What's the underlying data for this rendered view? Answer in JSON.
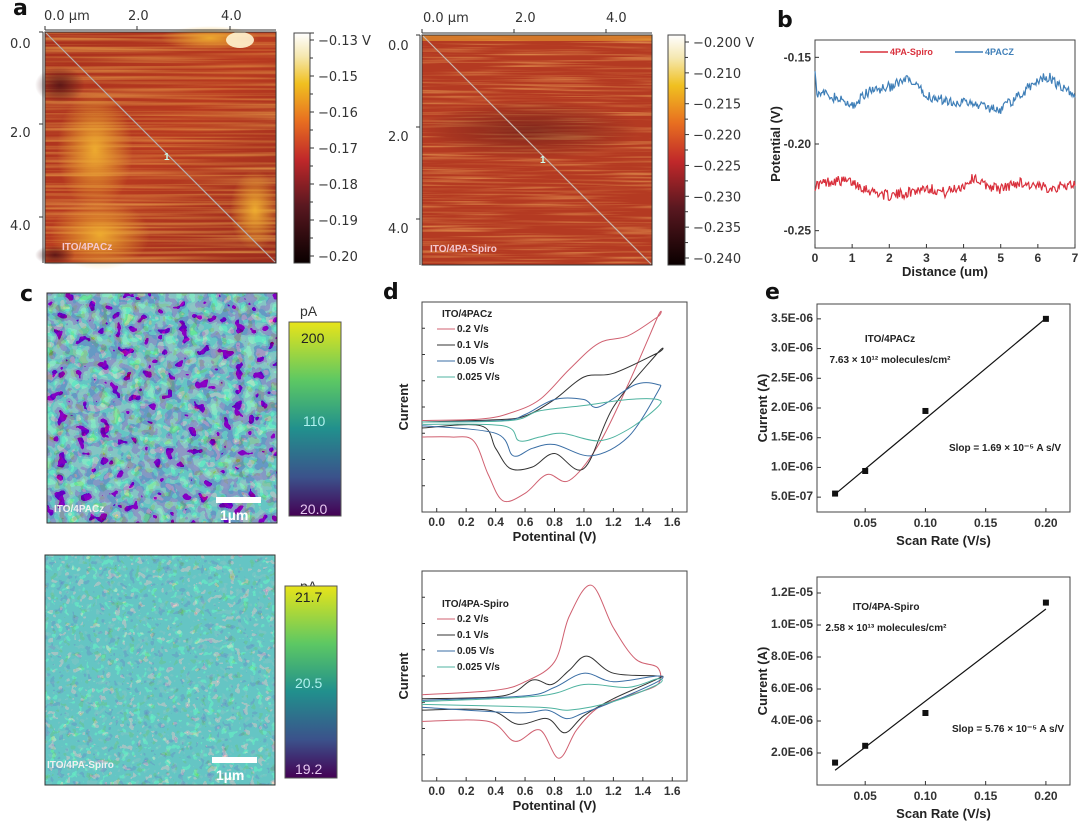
{
  "panels": {
    "a": {
      "letter": "a",
      "maps": [
        {
          "label": "ITO/4PACz",
          "x_ticks": [
            "0.0 µm",
            "2.0",
            "4.0"
          ],
          "y_ticks": [
            "0.0",
            "2.0",
            "4.0"
          ],
          "profile_marker": "1",
          "colorbar": {
            "ticks": [
              "−0.13 V",
              "−0.15",
              "−0.16",
              "−0.17",
              "−0.18",
              "−0.19",
              "−0.20"
            ],
            "colormap": "afmhot",
            "range": [
              -0.2,
              -0.13
            ],
            "unit": "V"
          }
        },
        {
          "label": "ITO/4PA-Spiro",
          "x_ticks": [
            "0.0 µm",
            "2.0",
            "4.0"
          ],
          "y_ticks": [
            "0.0",
            "2.0",
            "4.0"
          ],
          "profile_marker": "1",
          "colorbar": {
            "ticks": [
              "−0.200 V",
              "−0.210",
              "−0.215",
              "−0.220",
              "−0.225",
              "−0.230",
              "−0.235",
              "−0.240"
            ],
            "colormap": "afmhot",
            "range": [
              -0.24,
              -0.2
            ],
            "unit": "V"
          }
        }
      ]
    },
    "c": {
      "letter": "c",
      "maps": [
        {
          "label": "ITO/4PACz",
          "scalebar": "1µm",
          "colorbar": {
            "unit": "pA",
            "ticks": [
              "200",
              "110",
              "20.0"
            ],
            "colormap": "viridis",
            "range": [
              20.0,
              200
            ]
          }
        },
        {
          "label": "ITO/4PA-Spiro",
          "scalebar": "1µm",
          "colorbar": {
            "unit": "pA",
            "ticks": [
              "21.7",
              "20.5",
              "19.2"
            ],
            "colormap": "viridis",
            "range": [
              19.2,
              21.7
            ]
          }
        }
      ]
    },
    "b": {
      "letter": "b"
    },
    "d": {
      "letter": "d"
    },
    "e": {
      "letter": "e"
    }
  },
  "chart_data": [
    {
      "id": "b",
      "type": "line",
      "title": "",
      "xlabel": "Distance (um)",
      "ylabel": "Potential (V)",
      "xlim": [
        0,
        7
      ],
      "ylim": [
        -0.26,
        -0.14
      ],
      "x_ticks": [
        "0",
        "1",
        "2",
        "3",
        "4",
        "5",
        "6",
        "7"
      ],
      "y_ticks": [
        "-0.15",
        "-0.20",
        "-0.25"
      ],
      "y_tick_values": [
        -0.15,
        -0.2,
        -0.25
      ],
      "legend": "top",
      "series": [
        {
          "name": "4PA-Spiro",
          "color": "#d9303c",
          "x": [
            0,
            0.5,
            1,
            1.5,
            2,
            2.5,
            3,
            3.5,
            4,
            4.3,
            4.5,
            5,
            5.5,
            6,
            6.5,
            7
          ],
          "y": [
            -0.224,
            -0.221,
            -0.222,
            -0.227,
            -0.23,
            -0.228,
            -0.225,
            -0.228,
            -0.224,
            -0.219,
            -0.223,
            -0.226,
            -0.222,
            -0.225,
            -0.225,
            -0.223
          ]
        },
        {
          "name": "4PACZ",
          "color": "#3f7fb8",
          "x": [
            0,
            0.05,
            0.5,
            1,
            1.5,
            2,
            2.5,
            3,
            3.5,
            4,
            4.5,
            5,
            5.5,
            6,
            6.3,
            6.6,
            7
          ],
          "y": [
            -0.155,
            -0.17,
            -0.173,
            -0.178,
            -0.169,
            -0.167,
            -0.163,
            -0.172,
            -0.175,
            -0.176,
            -0.178,
            -0.18,
            -0.172,
            -0.163,
            -0.161,
            -0.167,
            -0.172
          ]
        }
      ]
    },
    {
      "id": "d-top",
      "type": "line",
      "title": "ITO/4PACz",
      "xlabel": "Potentinal (V)",
      "ylabel": "Current",
      "xlim": [
        -0.1,
        1.7
      ],
      "ylim": [
        -1.2,
        1.6
      ],
      "x_ticks": [
        "0.0",
        "0.2",
        "0.4",
        "0.6",
        "0.8",
        "1.0",
        "1.2",
        "1.4",
        "1.6"
      ],
      "legend": "top-left",
      "series": [
        {
          "name": "0.2 V/s",
          "color": "#d06070",
          "x": [
            -0.1,
            0.3,
            0.5,
            0.7,
            0.9,
            1.1,
            1.3,
            1.5,
            1.5,
            1.3,
            1.1,
            0.9,
            0.75,
            0.6,
            0.45,
            0.35,
            0.25,
            0.1,
            -0.1
          ],
          "y": [
            0.02,
            0.04,
            0.12,
            0.3,
            0.7,
            1.05,
            1.15,
            1.4,
            1.4,
            0.5,
            -0.3,
            -0.78,
            -0.7,
            -0.95,
            -1.05,
            -0.7,
            -0.25,
            -0.2,
            -0.2
          ]
        },
        {
          "name": "0.1 V/s",
          "color": "#333333",
          "x": [
            -0.1,
            0.4,
            0.6,
            0.8,
            1.0,
            1.2,
            1.5,
            1.5,
            1.2,
            1.0,
            0.8,
            0.65,
            0.5,
            0.4,
            0.3,
            -0.1
          ],
          "y": [
            0.0,
            0.03,
            0.08,
            0.3,
            0.6,
            0.65,
            0.92,
            0.92,
            0.2,
            -0.62,
            -0.42,
            -0.6,
            -0.62,
            -0.35,
            -0.05,
            -0.08
          ]
        },
        {
          "name": "0.05 V/s",
          "color": "#3a6ea5",
          "x": [
            -0.1,
            0.45,
            0.6,
            0.8,
            1.0,
            1.1,
            1.35,
            1.5,
            1.5,
            1.3,
            1.05,
            0.8,
            0.65,
            0.52,
            0.4,
            -0.1
          ],
          "y": [
            0.0,
            0.02,
            0.1,
            0.3,
            0.3,
            0.2,
            0.5,
            0.5,
            0.4,
            -0.2,
            -0.45,
            -0.3,
            -0.35,
            -0.45,
            -0.15,
            -0.05
          ]
        },
        {
          "name": "0.025 V/s",
          "color": "#4fb3a0",
          "x": [
            -0.1,
            0.5,
            0.7,
            1.0,
            1.3,
            1.5,
            1.5,
            1.3,
            1.1,
            0.85,
            0.7,
            0.56,
            0.45,
            -0.1
          ],
          "y": [
            0.0,
            0.02,
            0.15,
            0.22,
            0.3,
            0.3,
            0.2,
            -0.1,
            -0.25,
            -0.15,
            -0.2,
            -0.25,
            -0.05,
            -0.03
          ]
        }
      ]
    },
    {
      "id": "d-bottom",
      "type": "line",
      "title": "ITO/4PA-Spiro",
      "xlabel": "Potentinal (V)",
      "ylabel": "Current",
      "xlim": [
        -0.1,
        1.7
      ],
      "ylim": [
        -1.4,
        2.3
      ],
      "x_ticks": [
        "0.0",
        "0.2",
        "0.4",
        "0.6",
        "0.8",
        "1.0",
        "1.2",
        "1.4",
        "1.6"
      ],
      "legend": "top-left",
      "series": [
        {
          "name": "0.2 V/s",
          "color": "#d06070",
          "x": [
            -0.1,
            0.4,
            0.6,
            0.8,
            0.9,
            1.05,
            1.2,
            1.35,
            1.5,
            1.5,
            1.3,
            1.1,
            0.95,
            0.83,
            0.7,
            0.53,
            0.35,
            -0.1
          ],
          "y": [
            0.12,
            0.2,
            0.35,
            0.7,
            1.5,
            2.05,
            1.3,
            0.75,
            0.6,
            0.3,
            0.1,
            -0.1,
            -0.5,
            -1.0,
            -0.5,
            -0.7,
            -0.35,
            -0.35
          ]
        },
        {
          "name": "0.1 V/s",
          "color": "#333333",
          "x": [
            -0.1,
            0.45,
            0.65,
            0.78,
            0.9,
            1.02,
            1.2,
            1.5,
            1.5,
            1.2,
            1.0,
            0.87,
            0.75,
            0.55,
            0.35,
            -0.1
          ],
          "y": [
            0.05,
            0.1,
            0.38,
            0.3,
            0.55,
            0.8,
            0.5,
            0.45,
            0.4,
            0.05,
            -0.25,
            -0.55,
            -0.3,
            -0.4,
            -0.15,
            -0.15
          ]
        },
        {
          "name": "0.05 V/s",
          "color": "#3a6ea5",
          "x": [
            -0.1,
            0.6,
            0.8,
            1.0,
            1.2,
            1.5,
            1.5,
            1.2,
            1.0,
            0.88,
            0.75,
            0.55,
            -0.1
          ],
          "y": [
            0.02,
            0.1,
            0.25,
            0.5,
            0.35,
            0.45,
            0.35,
            0.0,
            -0.2,
            -0.3,
            -0.15,
            -0.2,
            -0.1
          ]
        },
        {
          "name": "0.025 V/s",
          "color": "#4fb3a0",
          "x": [
            -0.1,
            0.7,
            1.0,
            1.3,
            1.5,
            1.5,
            1.2,
            0.9,
            0.7,
            -0.1
          ],
          "y": [
            0.0,
            0.1,
            0.3,
            0.25,
            0.4,
            0.3,
            0.0,
            -0.15,
            -0.1,
            -0.05
          ]
        }
      ]
    },
    {
      "id": "e-top",
      "type": "scatter",
      "xlabel": "Scan Rate (V/s)",
      "ylabel": "Current (A)",
      "xlim": [
        0.01,
        0.22
      ],
      "ylim": [
        2.5e-07,
        3.75e-06
      ],
      "x_ticks": [
        "0.05",
        "0.10",
        "0.15",
        "0.20"
      ],
      "x_tick_values": [
        0.05,
        0.1,
        0.15,
        0.2
      ],
      "y_ticks": [
        "5.0E-07",
        "1.0E-06",
        "1.5E-06",
        "2.0E-06",
        "2.5E-06",
        "3.0E-06",
        "3.5E-06"
      ],
      "y_tick_values": [
        5e-07,
        1e-06,
        1.5e-06,
        2e-06,
        2.5e-06,
        3e-06,
        3.5e-06
      ],
      "points": {
        "x": [
          0.025,
          0.05,
          0.1,
          0.2
        ],
        "y": [
          5.6e-07,
          9.4e-07,
          1.95e-06,
          3.5e-06
        ]
      },
      "fit": {
        "slope": 1.69e-05,
        "x": [
          0.025,
          0.2
        ],
        "y": [
          5.5e-07,
          3.51e-06
        ]
      },
      "annotations": [
        "ITO/4PACz",
        "7.63 × 10¹² molecules/cm²",
        "Slop = 1.69 × 10⁻⁵ A s/V"
      ]
    },
    {
      "id": "e-bottom",
      "type": "scatter",
      "xlabel": "Scan Rate (V/s)",
      "ylabel": "Current (A)",
      "xlim": [
        0.01,
        0.22
      ],
      "ylim": [
        0,
        1.3e-05
      ],
      "x_ticks": [
        "0.05",
        "0.10",
        "0.15",
        "0.20"
      ],
      "x_tick_values": [
        0.05,
        0.1,
        0.15,
        0.2
      ],
      "y_ticks": [
        "2.0E-06",
        "4.0E-06",
        "6.0E-06",
        "8.0E-06",
        "1.0E-05",
        "1.2E-05"
      ],
      "y_tick_values": [
        2e-06,
        4e-06,
        6e-06,
        8e-06,
        1e-05,
        1.2e-05
      ],
      "points": {
        "x": [
          0.025,
          0.05,
          0.1,
          0.2
        ],
        "y": [
          1.4e-06,
          2.45e-06,
          4.5e-06,
          1.14e-05
        ]
      },
      "fit": {
        "slope": 5.76e-05,
        "x": [
          0.025,
          0.2
        ],
        "y": [
          9.2e-07,
          1.1e-05
        ]
      },
      "annotations": [
        "ITO/4PA-Spiro",
        "2.58 × 10¹³ molecules/cm²",
        "Slop = 5.76 × 10⁻⁵ A s/V"
      ]
    }
  ]
}
